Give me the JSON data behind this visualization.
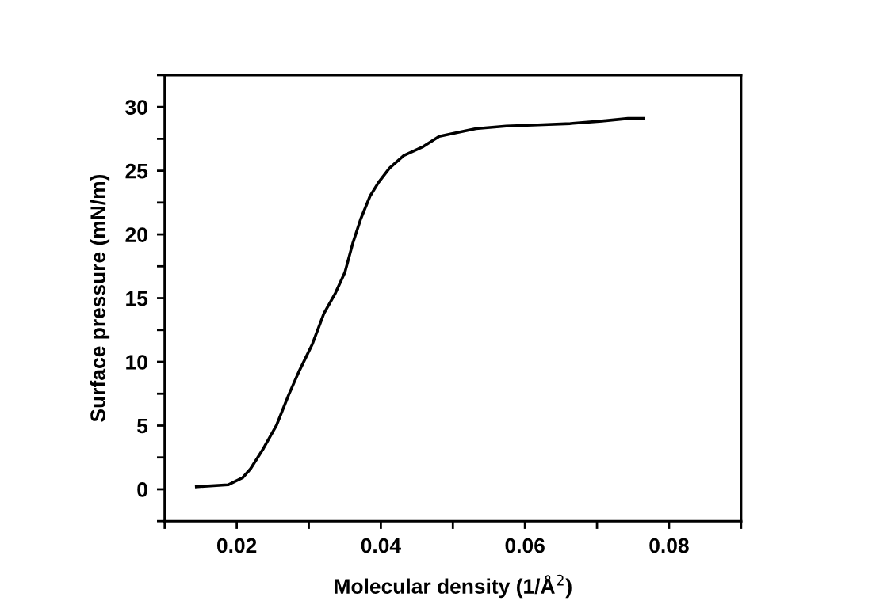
{
  "chart_data": {
    "type": "line",
    "xlabel": "Molecular density (1/Å$^{2}$)",
    "ylabel": "Surface pressure (mN/m)",
    "x": [
      0.0144,
      0.0188,
      0.0208,
      0.0219,
      0.0237,
      0.0255,
      0.0272,
      0.0286,
      0.0305,
      0.0321,
      0.0337,
      0.035,
      0.0361,
      0.0372,
      0.0385,
      0.0397,
      0.0412,
      0.0432,
      0.0459,
      0.0481,
      0.0507,
      0.0532,
      0.0574,
      0.0618,
      0.0663,
      0.0707,
      0.0743,
      0.0765
    ],
    "series": [
      {
        "color": "#000000",
        "values": [
          0.2,
          0.35,
          0.9,
          1.6,
          3.2,
          5.0,
          7.4,
          9.2,
          11.4,
          13.8,
          15.4,
          17.0,
          19.3,
          21.2,
          23.0,
          24.1,
          25.2,
          26.2,
          26.9,
          27.7,
          28.0,
          28.3,
          28.5,
          28.6,
          28.7,
          28.9,
          29.1,
          29.1
        ]
      }
    ],
    "xlim": [
      0.01,
      0.09
    ],
    "xticks": [
      {
        "value": 0.01,
        "label": null
      },
      0.02,
      {
        "value": 0.03,
        "label": null
      },
      0.04,
      {
        "value": 0.05,
        "label": null
      },
      0.06,
      {
        "value": 0.07,
        "label": null
      },
      0.08,
      {
        "value": 0.09,
        "label": null
      }
    ],
    "ylim": [
      -2.5,
      32.5
    ],
    "yticks": [
      {
        "value": -2.5,
        "label": null
      },
      0,
      {
        "value": 2.5,
        "label": null
      },
      5,
      {
        "value": 7.5,
        "label": null
      },
      10,
      {
        "value": 12.5,
        "label": null
      },
      15,
      {
        "value": 17.5,
        "label": null
      },
      20,
      {
        "value": 22.5,
        "label": null
      },
      25,
      {
        "value": 27.5,
        "label": null
      },
      30,
      {
        "value": 32.5,
        "label": null
      }
    ],
    "grid": false,
    "legend": false,
    "marker": "none",
    "line_style": "solid"
  }
}
